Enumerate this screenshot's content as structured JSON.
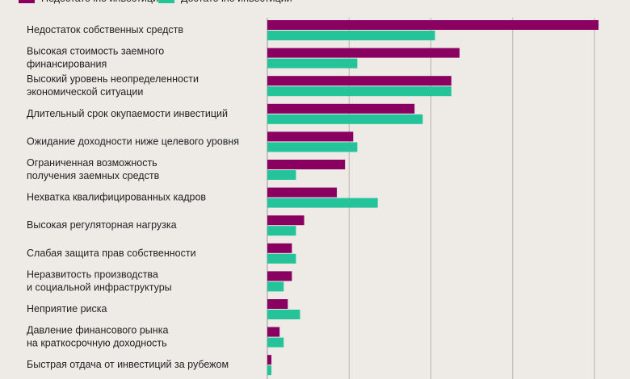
{
  "chart_data": {
    "type": "bar",
    "orientation": "horizontal",
    "categories": [
      [
        "Недостаток собственных средств"
      ],
      [
        "Высокая стоимость заемного",
        "финансирования"
      ],
      [
        "Высокий уровень неопределенности",
        "экономической ситуации"
      ],
      [
        "Длительный срок окупаемости инвестиций"
      ],
      [
        "Ожидание доходности ниже целевого уровня"
      ],
      [
        "Ограниченная возможность",
        "получения заемных средств"
      ],
      [
        "Нехватка квалифицированных кадров"
      ],
      [
        "Высокая регуляторная нагрузка"
      ],
      [
        "Слабая защита прав собственности"
      ],
      [
        "Неразвитость производства",
        "и социальной инфраструктуры"
      ],
      [
        "Неприятие риска"
      ],
      [
        "Давление финансового рынка",
        "на краткосрочную доходность"
      ],
      [
        "Быстрая отдача от инвестиций за рубежом"
      ]
    ],
    "series": [
      {
        "name": "Недостаточно инвестиций",
        "color": "#8a0060",
        "values": [
          40.5,
          23.5,
          22.5,
          18,
          10.5,
          9.5,
          8.5,
          4.5,
          3,
          3,
          2.5,
          1.5,
          0.5
        ]
      },
      {
        "name": "Достаточно инвестиций",
        "color": "#24c39a",
        "values": [
          20.5,
          11,
          22.5,
          19,
          11,
          3.5,
          13.5,
          3.5,
          3.5,
          2,
          4,
          2,
          0.5
        ]
      }
    ],
    "xlim": [
      0,
      40
    ],
    "grid_step": 10,
    "grid": true,
    "legend": "top-left"
  }
}
